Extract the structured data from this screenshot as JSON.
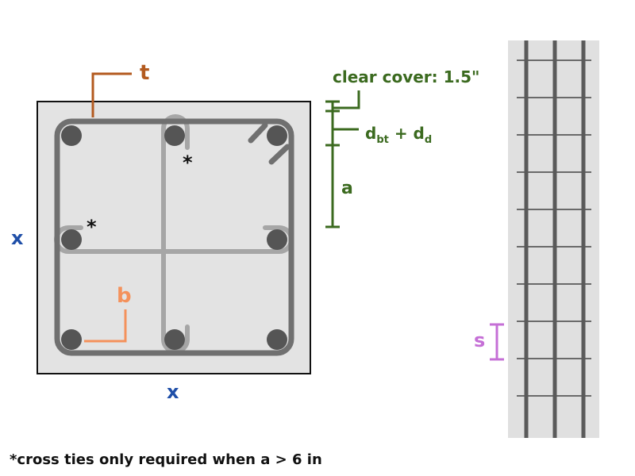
{
  "labels": {
    "t": "t",
    "x_left": "x",
    "x_bottom": "x",
    "b": "b",
    "a": "a",
    "s": "s",
    "clear_cover": "clear cover:  1.5\"",
    "dbt_d": "d",
    "dbt_sub": "bt",
    "plus": " + d",
    "dd_sub": "d",
    "asterisk_1": "*",
    "asterisk_2": "*"
  },
  "footnote": "*cross ties only required when a > 6 in",
  "colors": {
    "page_bg": "#ffffff",
    "section_fill": "#e3e3e3",
    "section_border": "#111111",
    "perimeter_tie": "#707070",
    "cross_tie": "#a6a6a6",
    "bar": "#555555",
    "t_color": "#b35a1f",
    "x_color": "#1f4fa8",
    "b_color": "#f4915b",
    "dim_color": "#3b6a1f",
    "s_color": "#c56fd6",
    "elevation_fill": "#e0e0e0",
    "longitudinal_bar": "#5a5a5a",
    "tie_line": "#6a6a6a"
  }
}
